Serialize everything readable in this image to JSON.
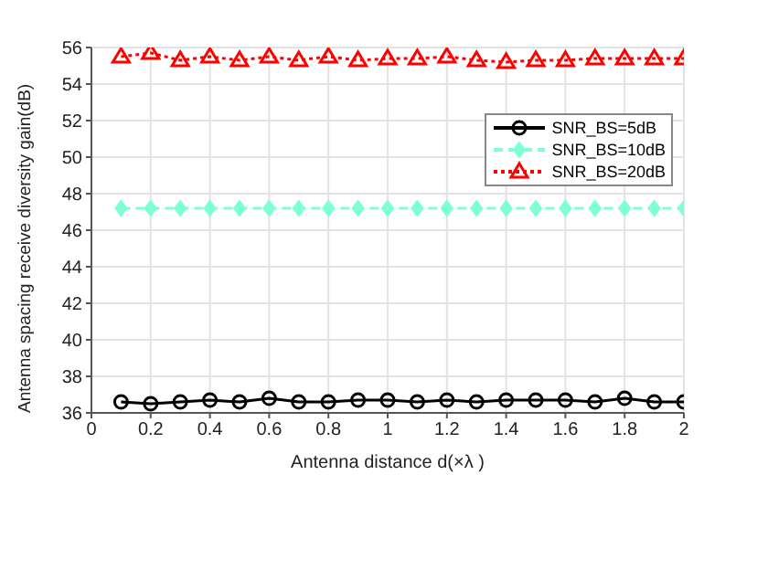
{
  "chart_data": {
    "type": "line",
    "xlabel": "Antenna distance d(×λ  )",
    "ylabel": "Antenna spacing receive diversity gain(dB)",
    "x": [
      0.1,
      0.2,
      0.3,
      0.4,
      0.5,
      0.6,
      0.7,
      0.8,
      0.9,
      1,
      1.1,
      1.2,
      1.3,
      1.4,
      1.5,
      1.6,
      1.7,
      1.8,
      1.9,
      2
    ],
    "series": [
      {
        "name": "SNR_BS=5dB",
        "color": "#000000",
        "marker": "circle",
        "line_style": "solid",
        "values": [
          36.6,
          36.5,
          36.6,
          36.7,
          36.6,
          36.8,
          36.6,
          36.6,
          36.7,
          36.7,
          36.6,
          36.7,
          36.6,
          36.7,
          36.7,
          36.7,
          36.6,
          36.8,
          36.6,
          36.6
        ]
      },
      {
        "name": "SNR_BS=10dB",
        "color": "#7fffd4",
        "marker": "diamond",
        "line_style": "dashed",
        "values": [
          47.2,
          47.2,
          47.2,
          47.2,
          47.2,
          47.2,
          47.2,
          47.2,
          47.2,
          47.2,
          47.2,
          47.2,
          47.2,
          47.2,
          47.2,
          47.2,
          47.2,
          47.2,
          47.2,
          47.2
        ]
      },
      {
        "name": "SNR_BS=20dB",
        "color": "#ff0000",
        "marker": "triangle",
        "line_style": "dotted",
        "values": [
          55.5,
          55.7,
          55.3,
          55.5,
          55.3,
          55.5,
          55.3,
          55.5,
          55.3,
          55.4,
          55.4,
          55.5,
          55.3,
          55.2,
          55.3,
          55.3,
          55.4,
          55.4,
          55.4,
          55.4
        ]
      }
    ],
    "xlim": [
      0,
      2
    ],
    "xticks": [
      0,
      0.2,
      0.4,
      0.6,
      0.8,
      1,
      1.2,
      1.4,
      1.6,
      1.8,
      2
    ],
    "ylim": [
      36,
      56
    ],
    "yticks": [
      36,
      38,
      40,
      42,
      44,
      46,
      48,
      50,
      52,
      54,
      56
    ],
    "grid": true,
    "legend": "top right"
  }
}
